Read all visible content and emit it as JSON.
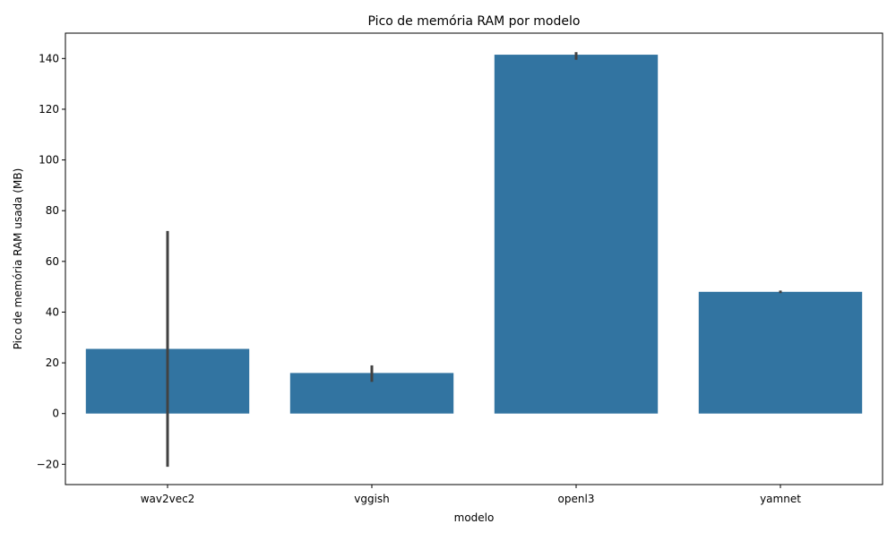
{
  "chart_data": {
    "type": "bar",
    "title": "Pico de memória RAM por modelo",
    "xlabel": "modelo",
    "ylabel": "Pico de memória RAM usada (MB)",
    "categories": [
      "wav2vec2",
      "vggish",
      "openl3",
      "yamnet"
    ],
    "values": [
      25.5,
      16,
      141.5,
      48
    ],
    "error_bars": [
      {
        "low": -21,
        "high": 72
      },
      {
        "low": 12.5,
        "high": 19
      },
      {
        "low": 139.5,
        "high": 142.5
      },
      {
        "low": 47.5,
        "high": 48.5
      }
    ],
    "ylim": [
      -28,
      150
    ],
    "yticks": [
      -20,
      0,
      20,
      40,
      60,
      80,
      100,
      120,
      140
    ],
    "ytick_labels": [
      "−20",
      "0",
      "20",
      "40",
      "60",
      "80",
      "100",
      "120",
      "140"
    ],
    "bar_color": "#3274a1",
    "error_color": "#424242",
    "grid": false,
    "legend": "none"
  }
}
